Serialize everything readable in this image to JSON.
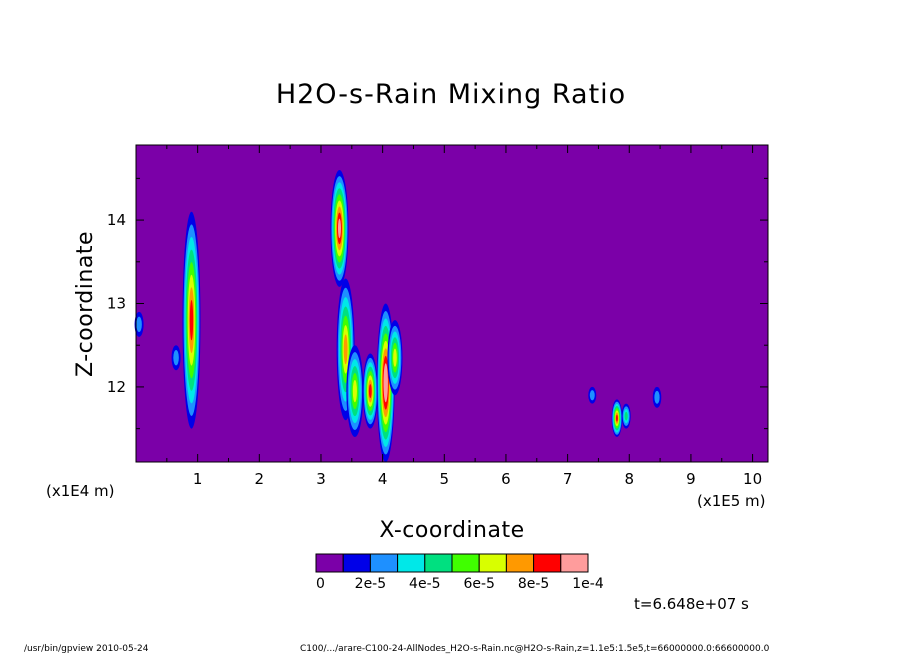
{
  "chart_data": {
    "type": "heatmap",
    "title": "H2O-s-Rain Mixing Ratio",
    "xlabel": "X-coordinate",
    "ylabel": "Z-coordinate",
    "x_multiplier": "(x1E5 m)",
    "y_multiplier": "(x1E4 m)",
    "xlim": [
      0,
      10.25
    ],
    "ylim": [
      11.1,
      14.9
    ],
    "x_ticks": [
      "1",
      "2",
      "3",
      "4",
      "5",
      "6",
      "7",
      "8",
      "9",
      "10"
    ],
    "y_ticks": [
      "12",
      "13",
      "14"
    ],
    "background_color": "#7b00a8",
    "legend": {
      "colors": [
        "#7b00a8",
        "#0000e8",
        "#1e90ff",
        "#00e8e8",
        "#00e080",
        "#40ff00",
        "#d8ff00",
        "#ff9900",
        "#ff0000",
        "#ff9c9c"
      ],
      "labels": [
        "0",
        "2e-5",
        "4e-5",
        "6e-5",
        "8e-5",
        "1e-4"
      ]
    },
    "time_label": "t=6.648e+07 s",
    "features": [
      {
        "x": 0.9,
        "z_min": 11.5,
        "z_max": 14.1,
        "peak": 8.5e-05
      },
      {
        "x": 3.3,
        "z_min": 13.2,
        "z_max": 14.6,
        "peak": 9e-05
      },
      {
        "x": 3.4,
        "z_min": 11.6,
        "z_max": 13.3,
        "peak": 7.5e-05
      },
      {
        "x": 3.55,
        "z_min": 11.4,
        "z_max": 12.5,
        "peak": 6e-05
      },
      {
        "x": 3.8,
        "z_min": 11.5,
        "z_max": 12.4,
        "peak": 8e-05
      },
      {
        "x": 4.05,
        "z_min": 11.1,
        "z_max": 13.0,
        "peak": 0.0001
      },
      {
        "x": 4.2,
        "z_min": 11.9,
        "z_max": 12.8,
        "peak": 6.5e-05
      },
      {
        "x": 0.05,
        "z_min": 12.6,
        "z_max": 12.9,
        "peak": 2.5e-05
      },
      {
        "x": 0.65,
        "z_min": 12.2,
        "z_max": 12.5,
        "peak": 2e-05
      },
      {
        "x": 7.4,
        "z_min": 11.8,
        "z_max": 12.0,
        "peak": 2.5e-05
      },
      {
        "x": 7.8,
        "z_min": 11.4,
        "z_max": 11.85,
        "peak": 8e-05
      },
      {
        "x": 7.95,
        "z_min": 11.5,
        "z_max": 11.8,
        "peak": 4e-05
      },
      {
        "x": 8.45,
        "z_min": 11.75,
        "z_max": 12.0,
        "peak": 2e-05
      }
    ]
  },
  "footer": {
    "left": "/usr/bin/gpview  2010-05-24",
    "right": "C100/.../arare-C100-24-AllNodes_H2O-s-Rain.nc@H2O-s-Rain,z=1.1e5:1.5e5,t=66000000.0:66600000.0"
  }
}
